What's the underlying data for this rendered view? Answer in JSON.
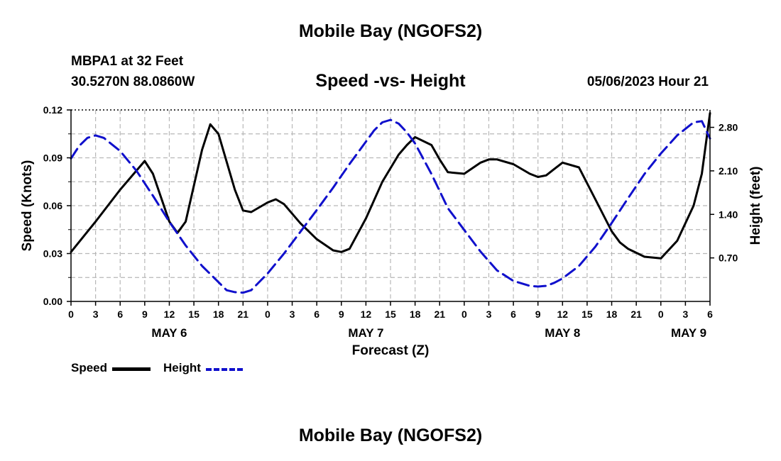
{
  "header": {
    "title": "Mobile Bay (NGOFS2)",
    "station": "MBPA1 at 32 Feet",
    "coords": "30.5270N  88.0860W",
    "subtitle": "Speed -vs- Height",
    "timestamp": "05/06/2023 Hour 21"
  },
  "footer": {
    "title": "Mobile Bay (NGOFS2)"
  },
  "legend": {
    "speed_label": "Speed",
    "height_label": "Height"
  },
  "colors": {
    "speed": "#000000",
    "height": "#1010cc",
    "grid": "#b8b8b8"
  },
  "chart_data": {
    "type": "line",
    "xlabel": "Forecast (Z)",
    "ylabel": "Speed (Knots)",
    "y2label": "Height (feet)",
    "x_range_hours": [
      0,
      78
    ],
    "x_tick_labels": [
      "0",
      "3",
      "6",
      "9",
      "12",
      "15",
      "18",
      "21",
      "0",
      "3",
      "6",
      "9",
      "12",
      "15",
      "18",
      "21",
      "0",
      "3",
      "6",
      "9",
      "12",
      "15",
      "18",
      "21",
      "0",
      "3",
      "6"
    ],
    "day_labels": [
      {
        "label": "MAY 6",
        "hour": 12
      },
      {
        "label": "MAY 7",
        "hour": 36
      },
      {
        "label": "MAY 8",
        "hour": 60
      },
      {
        "label": "MAY 9",
        "hour": 78
      }
    ],
    "ylim": [
      0,
      0.12
    ],
    "y_ticks": [
      "0.00",
      "0.03",
      "0.06",
      "0.09",
      "0.12"
    ],
    "y_tick_values": [
      0,
      0.03,
      0.06,
      0.09,
      0.12
    ],
    "y2lim": [
      0,
      3.08
    ],
    "y2_ticks": [
      "0.70",
      "1.40",
      "2.10",
      "2.80"
    ],
    "y2_tick_values": [
      0.7,
      1.4,
      2.1,
      2.8
    ],
    "grid": true,
    "legend_position": "bottom-left",
    "series": [
      {
        "name": "Speed",
        "axis": "left",
        "style": "solid",
        "x": [
          0,
          3,
          6,
          9,
          10,
          12,
          13,
          14,
          16,
          17,
          18,
          20,
          21,
          22,
          24,
          25,
          26,
          28,
          30,
          32,
          33,
          34,
          36,
          38,
          40,
          41,
          42,
          44,
          45,
          46,
          48,
          50,
          51,
          52,
          54,
          56,
          57,
          58,
          59,
          60,
          62,
          64,
          66,
          67,
          68,
          70,
          72,
          74,
          76,
          77,
          78
        ],
        "y": [
          0.031,
          0.05,
          0.07,
          0.088,
          0.08,
          0.05,
          0.043,
          0.05,
          0.095,
          0.111,
          0.105,
          0.07,
          0.057,
          0.056,
          0.062,
          0.064,
          0.061,
          0.049,
          0.039,
          0.032,
          0.031,
          0.033,
          0.052,
          0.075,
          0.092,
          0.098,
          0.103,
          0.098,
          0.089,
          0.081,
          0.08,
          0.087,
          0.089,
          0.089,
          0.086,
          0.08,
          0.078,
          0.079,
          0.083,
          0.087,
          0.084,
          0.064,
          0.044,
          0.037,
          0.033,
          0.028,
          0.027,
          0.038,
          0.06,
          0.08,
          0.118
        ]
      },
      {
        "name": "Height",
        "axis": "right",
        "style": "dashed",
        "x": [
          0,
          1,
          2,
          3,
          4,
          6,
          8,
          10,
          12,
          14,
          16,
          18,
          19,
          20,
          21,
          22,
          24,
          26,
          28,
          30,
          32,
          34,
          36,
          37,
          38,
          39,
          40,
          41,
          42,
          44,
          46,
          48,
          50,
          52,
          54,
          56,
          57,
          58,
          59,
          60,
          62,
          64,
          66,
          68,
          70,
          72,
          74,
          76,
          77,
          78
        ],
        "y": [
          2.3,
          2.5,
          2.63,
          2.67,
          2.63,
          2.42,
          2.1,
          1.7,
          1.28,
          0.9,
          0.57,
          0.31,
          0.18,
          0.15,
          0.14,
          0.18,
          0.45,
          0.77,
          1.12,
          1.47,
          1.83,
          2.21,
          2.57,
          2.75,
          2.88,
          2.92,
          2.86,
          2.72,
          2.54,
          2.05,
          1.5,
          1.15,
          0.8,
          0.5,
          0.33,
          0.25,
          0.24,
          0.25,
          0.3,
          0.37,
          0.57,
          0.88,
          1.26,
          1.66,
          2.05,
          2.38,
          2.67,
          2.88,
          2.9,
          2.62
        ]
      }
    ]
  }
}
